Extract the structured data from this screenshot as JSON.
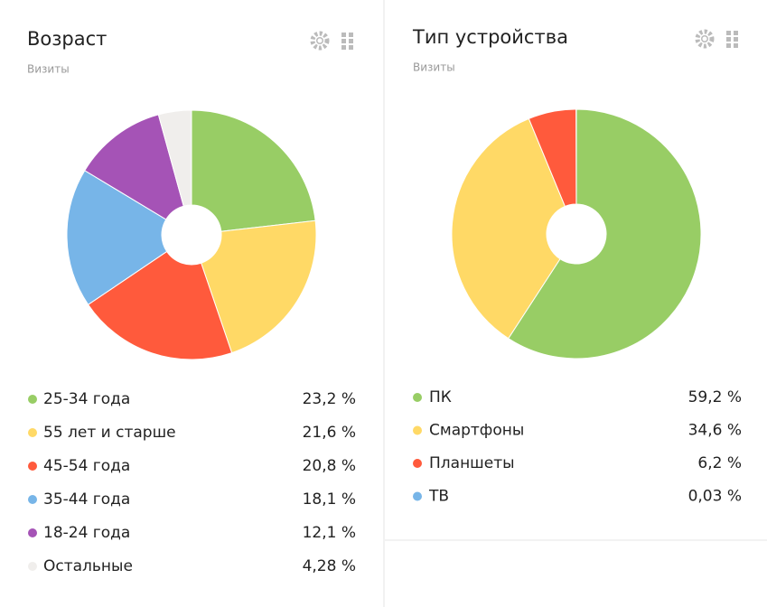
{
  "chart_data": [
    {
      "type": "donut",
      "title": "Возраст",
      "subtitle": "Визиты",
      "categories": [
        "25-34 года",
        "55 лет и старше",
        "45-54 года",
        "35-44 года",
        "18-24 года",
        "Остальные"
      ],
      "values": [
        23.2,
        21.6,
        20.8,
        18.1,
        12.1,
        4.28
      ],
      "value_labels": [
        "23,2 %",
        "21,6 %",
        "20,8 %",
        "18,1 %",
        "12,1 %",
        "4,28 %"
      ],
      "colors": [
        "#98cd65",
        "#ffd966",
        "#ff5a3c",
        "#77b5e8",
        "#a553b6",
        "#f0eeec"
      ]
    },
    {
      "type": "donut",
      "title": "Тип устройства",
      "subtitle": "Визиты",
      "categories": [
        "ПК",
        "Смартфоны",
        "Планшеты",
        "ТВ"
      ],
      "values": [
        59.2,
        34.6,
        6.2,
        0.03
      ],
      "value_labels": [
        "59,2 %",
        "34,6 %",
        "6,2 %",
        "0,03 %"
      ],
      "colors": [
        "#98cd65",
        "#ffd966",
        "#ff5a3c",
        "#77b5e8"
      ]
    }
  ]
}
